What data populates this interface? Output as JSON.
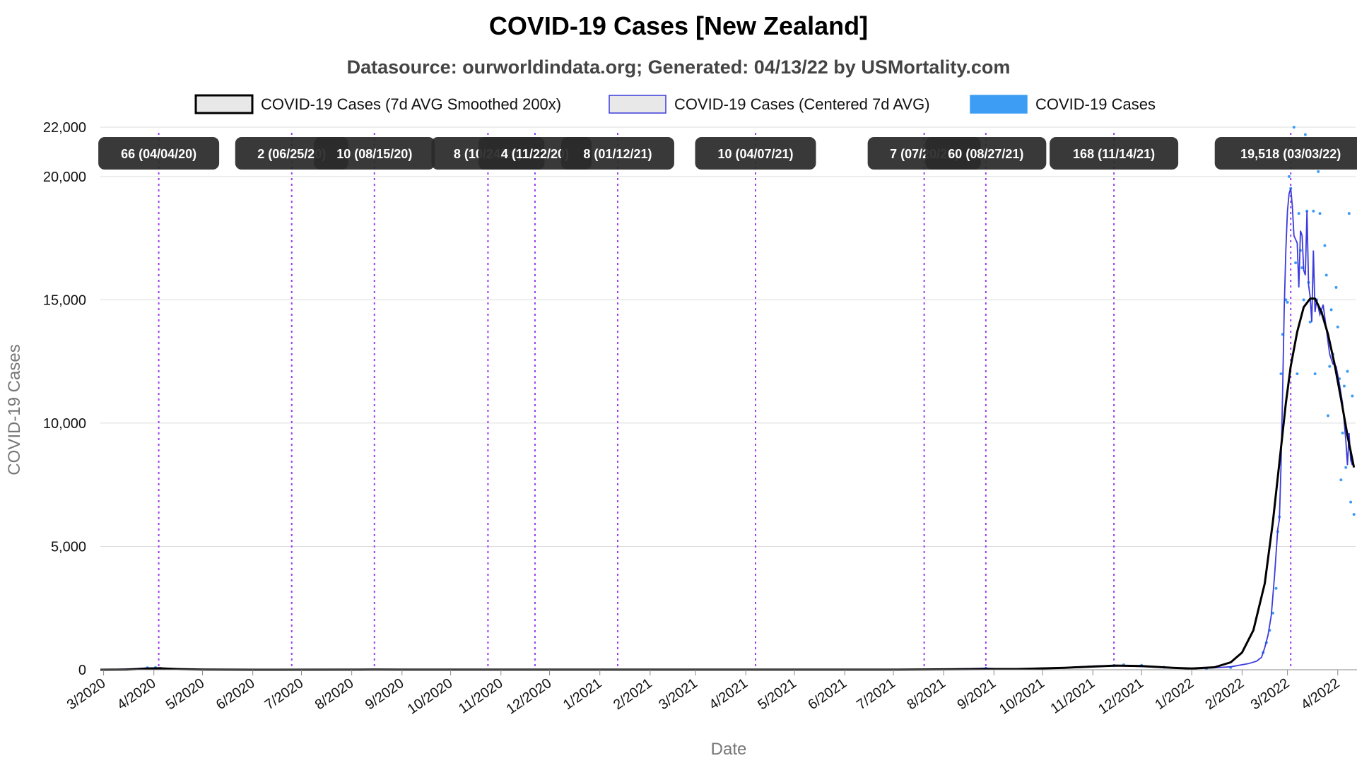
{
  "chart_data": {
    "type": "line",
    "title": "COVID-19 Cases [New Zealand]",
    "subtitle": "Datasource: ourworldindata.org; Generated: 04/13/22 by USMortality.com",
    "xlabel": "Date",
    "ylabel": "COVID-19 Cases",
    "x_start": "2020-02-28",
    "x_end": "2022-04-12",
    "ylim": [
      0,
      22000
    ],
    "yticks": [
      0,
      5000,
      10000,
      15000,
      20000,
      22000
    ],
    "ytick_labels": [
      "0",
      "5,000",
      "10,000",
      "15,000",
      "20,000",
      "22,000"
    ],
    "xticks": [
      {
        "label": "3/2020",
        "date": "2020-03-01"
      },
      {
        "label": "4/2020",
        "date": "2020-04-01"
      },
      {
        "label": "5/2020",
        "date": "2020-05-01"
      },
      {
        "label": "6/2020",
        "date": "2020-06-01"
      },
      {
        "label": "7/2020",
        "date": "2020-07-01"
      },
      {
        "label": "8/2020",
        "date": "2020-08-01"
      },
      {
        "label": "9/2020",
        "date": "2020-09-01"
      },
      {
        "label": "10/2020",
        "date": "2020-10-01"
      },
      {
        "label": "11/2020",
        "date": "2020-11-01"
      },
      {
        "label": "12/2020",
        "date": "2020-12-01"
      },
      {
        "label": "1/2021",
        "date": "2021-01-01"
      },
      {
        "label": "2/2021",
        "date": "2021-02-01"
      },
      {
        "label": "3/2021",
        "date": "2021-03-01"
      },
      {
        "label": "4/2021",
        "date": "2021-04-01"
      },
      {
        "label": "5/2021",
        "date": "2021-05-01"
      },
      {
        "label": "6/2021",
        "date": "2021-06-01"
      },
      {
        "label": "7/2021",
        "date": "2021-07-01"
      },
      {
        "label": "8/2021",
        "date": "2021-08-01"
      },
      {
        "label": "9/2021",
        "date": "2021-09-01"
      },
      {
        "label": "10/2021",
        "date": "2021-10-01"
      },
      {
        "label": "11/2021",
        "date": "2021-11-01"
      },
      {
        "label": "12/2021",
        "date": "2021-12-01"
      },
      {
        "label": "1/2022",
        "date": "2022-01-01"
      },
      {
        "label": "2/2022",
        "date": "2022-02-01"
      },
      {
        "label": "3/2022",
        "date": "2022-03-01"
      },
      {
        "label": "4/2022",
        "date": "2022-04-01"
      }
    ],
    "grid": true,
    "legend_position": "top-center",
    "legend": [
      {
        "label": "COVID-19 Cases (7d AVG Smoothed 200x)",
        "fill": "#e8e8e8",
        "stroke": "#000000"
      },
      {
        "label": "COVID-19 Cases (Centered 7d AVG)",
        "fill": "#e8e8e8",
        "stroke": "#3b3bdc"
      },
      {
        "label": "COVID-19 Cases",
        "fill": "#3d9df5",
        "stroke": "#3d9df5"
      }
    ],
    "annotations": [
      {
        "date": "2020-04-04",
        "label": "66 (04/04/20)"
      },
      {
        "date": "2020-06-25",
        "label": "2 (06/25/20)"
      },
      {
        "date": "2020-08-15",
        "label": "10 (08/15/20)"
      },
      {
        "date": "2020-10-24",
        "label": "8 (10/24/20)"
      },
      {
        "date": "2020-11-22",
        "label": "4 (11/22/20)"
      },
      {
        "date": "2021-01-12",
        "label": "8 (01/12/21)"
      },
      {
        "date": "2021-04-07",
        "label": "10 (04/07/21)"
      },
      {
        "date": "2021-07-20",
        "label": "7 (07/20/21)"
      },
      {
        "date": "2021-08-27",
        "label": "60 (08/27/21)"
      },
      {
        "date": "2021-11-14",
        "label": "168 (11/14/21)"
      },
      {
        "date": "2022-03-03",
        "label": "19,518 (03/03/22)"
      }
    ],
    "series": [
      {
        "name": "COVID-19 Cases (7d AVG Smoothed 200x)",
        "color": "#000000",
        "points": [
          [
            "2020-02-28",
            0
          ],
          [
            "2020-03-15",
            10
          ],
          [
            "2020-03-28",
            45
          ],
          [
            "2020-04-04",
            60
          ],
          [
            "2020-04-15",
            30
          ],
          [
            "2020-05-01",
            5
          ],
          [
            "2020-06-01",
            1
          ],
          [
            "2020-08-15",
            5
          ],
          [
            "2020-09-01",
            3
          ],
          [
            "2021-01-01",
            3
          ],
          [
            "2021-07-01",
            3
          ],
          [
            "2021-08-27",
            30
          ],
          [
            "2021-09-15",
            30
          ],
          [
            "2021-10-15",
            80
          ],
          [
            "2021-11-15",
            170
          ],
          [
            "2021-12-01",
            150
          ],
          [
            "2021-12-20",
            80
          ],
          [
            "2022-01-01",
            50
          ],
          [
            "2022-01-15",
            100
          ],
          [
            "2022-01-25",
            300
          ],
          [
            "2022-02-01",
            700
          ],
          [
            "2022-02-08",
            1600
          ],
          [
            "2022-02-15",
            3500
          ],
          [
            "2022-02-20",
            6000
          ],
          [
            "2022-02-24",
            8400
          ],
          [
            "2022-02-28",
            10800
          ],
          [
            "2022-03-03",
            12300
          ],
          [
            "2022-03-07",
            13700
          ],
          [
            "2022-03-11",
            14700
          ],
          [
            "2022-03-15",
            15050
          ],
          [
            "2022-03-18",
            15050
          ],
          [
            "2022-03-22",
            14500
          ],
          [
            "2022-03-26",
            13600
          ],
          [
            "2022-03-30",
            12400
          ],
          [
            "2022-04-03",
            11000
          ],
          [
            "2022-04-07",
            9500
          ],
          [
            "2022-04-11",
            8200
          ]
        ]
      },
      {
        "name": "COVID-19 Cases (Centered 7d AVG)",
        "color": "#3b3bdc",
        "points": [
          [
            "2020-02-28",
            0
          ],
          [
            "2020-03-20",
            40
          ],
          [
            "2020-03-28",
            75
          ],
          [
            "2020-04-04",
            66
          ],
          [
            "2020-04-12",
            35
          ],
          [
            "2020-04-25",
            8
          ],
          [
            "2020-05-10",
            1
          ],
          [
            "2020-06-25",
            2
          ],
          [
            "2020-08-15",
            10
          ],
          [
            "2020-10-24",
            8
          ],
          [
            "2020-11-22",
            4
          ],
          [
            "2021-01-12",
            8
          ],
          [
            "2021-04-07",
            10
          ],
          [
            "2021-07-20",
            7
          ],
          [
            "2021-08-20",
            50
          ],
          [
            "2021-08-27",
            60
          ],
          [
            "2021-09-10",
            25
          ],
          [
            "2021-10-15",
            90
          ],
          [
            "2021-11-01",
            150
          ],
          [
            "2021-11-14",
            168
          ],
          [
            "2021-12-01",
            130
          ],
          [
            "2021-12-20",
            70
          ],
          [
            "2022-01-10",
            60
          ],
          [
            "2022-01-25",
            120
          ],
          [
            "2022-02-05",
            250
          ],
          [
            "2022-02-10",
            350
          ],
          [
            "2022-02-13",
            500
          ],
          [
            "2022-02-15",
            900
          ],
          [
            "2022-02-17",
            1400
          ],
          [
            "2022-02-19",
            2200
          ],
          [
            "2022-02-21",
            3800
          ],
          [
            "2022-02-23",
            5700
          ],
          [
            "2022-02-24",
            6100
          ],
          [
            "2022-02-25",
            8200
          ],
          [
            "2022-02-26",
            11200
          ],
          [
            "2022-02-27",
            14600
          ],
          [
            "2022-02-28",
            17000
          ],
          [
            "2022-03-01",
            18600
          ],
          [
            "2022-03-02",
            19300
          ],
          [
            "2022-03-03",
            19518
          ],
          [
            "2022-03-04",
            18800
          ],
          [
            "2022-03-05",
            17600
          ],
          [
            "2022-03-07",
            17300
          ],
          [
            "2022-03-08",
            15500
          ],
          [
            "2022-03-09",
            17800
          ],
          [
            "2022-03-10",
            17600
          ],
          [
            "2022-03-11",
            16200
          ],
          [
            "2022-03-12",
            16000
          ],
          [
            "2022-03-13",
            18600
          ],
          [
            "2022-03-14",
            15600
          ],
          [
            "2022-03-15",
            15100
          ],
          [
            "2022-03-16",
            14100
          ],
          [
            "2022-03-17",
            17000
          ],
          [
            "2022-03-18",
            14500
          ],
          [
            "2022-03-19",
            15000
          ],
          [
            "2022-03-21",
            14400
          ],
          [
            "2022-03-23",
            14800
          ],
          [
            "2022-03-25",
            13800
          ],
          [
            "2022-03-27",
            12800
          ],
          [
            "2022-03-29",
            12400
          ],
          [
            "2022-03-31",
            12300
          ],
          [
            "2022-04-02",
            11600
          ],
          [
            "2022-04-04",
            10800
          ],
          [
            "2022-04-06",
            9300
          ],
          [
            "2022-04-07",
            8300
          ],
          [
            "2022-04-08",
            9600
          ],
          [
            "2022-04-09",
            8500
          ],
          [
            "2022-04-10",
            8300
          ]
        ]
      },
      {
        "name": "COVID-19 Cases",
        "color": "#3d9df5",
        "points": [
          [
            "2020-03-28",
            80
          ],
          [
            "2020-04-02",
            90
          ],
          [
            "2020-04-05",
            60
          ],
          [
            "2021-08-27",
            60
          ],
          [
            "2021-11-14",
            170
          ],
          [
            "2021-11-20",
            200
          ],
          [
            "2021-12-01",
            180
          ],
          [
            "2021-12-15",
            100
          ],
          [
            "2022-01-10",
            40
          ],
          [
            "2022-01-25",
            90
          ],
          [
            "2022-02-14",
            700
          ],
          [
            "2022-02-16",
            1100
          ],
          [
            "2022-02-18",
            1600
          ],
          [
            "2022-02-20",
            2300
          ],
          [
            "2022-02-22",
            3300
          ],
          [
            "2022-02-23",
            5600
          ],
          [
            "2022-02-24",
            6200
          ],
          [
            "2022-02-25",
            12000
          ],
          [
            "2022-02-26",
            13600
          ],
          [
            "2022-02-28",
            15000
          ],
          [
            "2022-03-01",
            14900
          ],
          [
            "2022-03-02",
            20000
          ],
          [
            "2022-03-03",
            19518
          ],
          [
            "2022-03-05",
            22000
          ],
          [
            "2022-03-06",
            16500
          ],
          [
            "2022-03-07",
            12000
          ],
          [
            "2022-03-08",
            18500
          ],
          [
            "2022-03-09",
            17000
          ],
          [
            "2022-03-10",
            16300
          ],
          [
            "2022-03-11",
            15000
          ],
          [
            "2022-03-12",
            21700
          ],
          [
            "2022-03-13",
            18600
          ],
          [
            "2022-03-14",
            15700
          ],
          [
            "2022-03-15",
            14100
          ],
          [
            "2022-03-17",
            18600
          ],
          [
            "2022-03-18",
            12000
          ],
          [
            "2022-03-19",
            15000
          ],
          [
            "2022-03-20",
            20200
          ],
          [
            "2022-03-21",
            18500
          ],
          [
            "2022-03-22",
            14500
          ],
          [
            "2022-03-24",
            17200
          ],
          [
            "2022-03-25",
            16000
          ],
          [
            "2022-03-26",
            10300
          ],
          [
            "2022-03-27",
            12300
          ],
          [
            "2022-03-28",
            14600
          ],
          [
            "2022-03-29",
            12800
          ],
          [
            "2022-03-31",
            15500
          ],
          [
            "2022-04-01",
            13900
          ],
          [
            "2022-04-02",
            11800
          ],
          [
            "2022-04-03",
            7700
          ],
          [
            "2022-04-04",
            9600
          ],
          [
            "2022-04-05",
            11500
          ],
          [
            "2022-04-06",
            8200
          ],
          [
            "2022-04-07",
            12100
          ],
          [
            "2022-04-08",
            18500
          ],
          [
            "2022-04-09",
            6800
          ],
          [
            "2022-04-10",
            11100
          ],
          [
            "2022-04-11",
            6300
          ]
        ]
      }
    ]
  }
}
